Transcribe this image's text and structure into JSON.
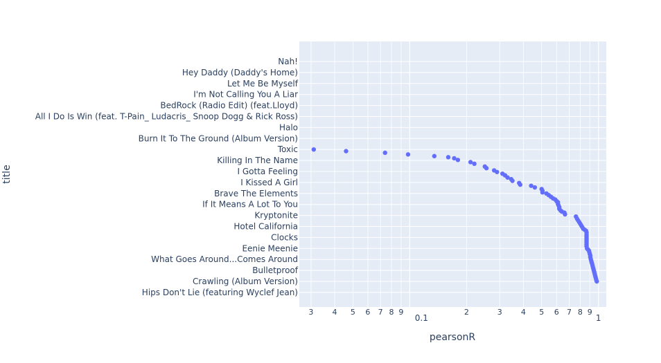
{
  "chart_data": {
    "type": "scatter",
    "title": "",
    "xlabel": "pearsonR",
    "ylabel": "title",
    "xscale": "log",
    "xlim": [
      0.026,
      1.1
    ],
    "x_tick_labels": [
      "3",
      "4",
      "5",
      "6",
      "7",
      "8",
      "9",
      "0.1",
      "2",
      "3",
      "4",
      "5",
      "6",
      "7",
      "8",
      "9",
      "1"
    ],
    "y_tick_labels": [
      "Nah!",
      "Hey Daddy (Daddy's Home)",
      "Let Me Be Myself",
      "I'm Not Calling You A Liar",
      "BedRock (Radio Edit) (feat.Lloyd)",
      "All I Do Is Win (feat. T-Pain_ Ludacris_ Snoop Dogg & Rick Ross)",
      "Halo",
      "Burn It To The Ground (Album Version)",
      "Toxic",
      "Killing In The Name",
      "I Gotta Feeling",
      "I Kissed A Girl",
      "Brave The Elements",
      "If It Means A Lot To You",
      "Kryptonite",
      "Hotel California",
      "Clocks",
      "Eenie Meenie",
      "What Goes Around...Comes Around",
      "Bulletproof",
      "Crawling (Album Version)",
      "Hips Don't Lie (featuring Wyclef Jean)"
    ],
    "grid": true,
    "legend": "none",
    "colors": {
      "marker": "#636efa",
      "plot_bg": "#e5ecf6",
      "grid": "#ffffff",
      "text": "#2a3f5f"
    },
    "points": [
      [
        0.031,
        8.0
      ],
      [
        0.046,
        8.15
      ],
      [
        0.074,
        8.3
      ],
      [
        0.098,
        8.45
      ],
      [
        0.135,
        8.6
      ],
      [
        0.16,
        8.7
      ],
      [
        0.172,
        8.8
      ],
      [
        0.18,
        8.95
      ],
      [
        0.21,
        9.15
      ],
      [
        0.22,
        9.3
      ],
      [
        0.25,
        9.55
      ],
      [
        0.255,
        9.7
      ],
      [
        0.28,
        9.9
      ],
      [
        0.29,
        10.05
      ],
      [
        0.31,
        10.2
      ],
      [
        0.32,
        10.35
      ],
      [
        0.33,
        10.55
      ],
      [
        0.345,
        10.7
      ],
      [
        0.35,
        10.85
      ],
      [
        0.38,
        11.05
      ],
      [
        0.385,
        11.2
      ],
      [
        0.44,
        11.3
      ],
      [
        0.46,
        11.45
      ],
      [
        0.5,
        11.6
      ],
      [
        0.505,
        11.75
      ],
      [
        0.505,
        11.9
      ],
      [
        0.53,
        12.0
      ],
      [
        0.545,
        12.15
      ],
      [
        0.56,
        12.3
      ],
      [
        0.575,
        12.45
      ],
      [
        0.59,
        12.55
      ],
      [
        0.6,
        12.7
      ],
      [
        0.61,
        12.8
      ],
      [
        0.61,
        12.95
      ],
      [
        0.615,
        13.1
      ],
      [
        0.62,
        13.25
      ],
      [
        0.62,
        13.4
      ],
      [
        0.63,
        13.55
      ],
      [
        0.64,
        13.65
      ],
      [
        0.66,
        13.75
      ],
      [
        0.665,
        13.9
      ],
      [
        0.76,
        14.1
      ],
      [
        0.77,
        14.3
      ],
      [
        0.78,
        14.45
      ],
      [
        0.79,
        14.6
      ],
      [
        0.8,
        14.75
      ],
      [
        0.81,
        14.9
      ],
      [
        0.82,
        15.05
      ],
      [
        0.83,
        15.2
      ],
      [
        0.845,
        15.3
      ],
      [
        0.86,
        15.4
      ],
      [
        0.865,
        15.55
      ],
      [
        0.865,
        15.75
      ],
      [
        0.865,
        15.9
      ],
      [
        0.865,
        16.05
      ],
      [
        0.865,
        16.2
      ],
      [
        0.865,
        16.35
      ],
      [
        0.865,
        16.5
      ],
      [
        0.865,
        16.65
      ],
      [
        0.865,
        16.8
      ],
      [
        0.87,
        17.0
      ],
      [
        0.88,
        17.1
      ],
      [
        0.89,
        17.2
      ],
      [
        0.895,
        17.35
      ],
      [
        0.9,
        17.5
      ],
      [
        0.905,
        17.65
      ],
      [
        0.905,
        17.8
      ],
      [
        0.91,
        17.95
      ],
      [
        0.915,
        18.1
      ],
      [
        0.92,
        18.25
      ],
      [
        0.925,
        18.4
      ],
      [
        0.93,
        18.55
      ],
      [
        0.935,
        18.7
      ],
      [
        0.94,
        18.85
      ],
      [
        0.945,
        19.0
      ],
      [
        0.95,
        19.15
      ],
      [
        0.955,
        19.3
      ],
      [
        0.96,
        19.45
      ],
      [
        0.965,
        19.6
      ],
      [
        0.97,
        19.75
      ],
      [
        0.975,
        19.9
      ],
      [
        0.98,
        20.0
      ]
    ]
  }
}
